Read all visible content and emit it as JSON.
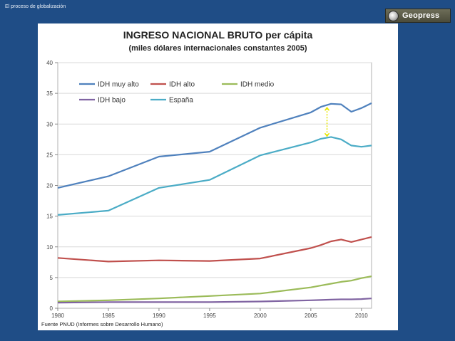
{
  "slide": {
    "title": "El proceso de globalización",
    "logo_text": "Geopress"
  },
  "chart_data": {
    "type": "line",
    "title": "INGRESO NACIONAL BRUTO per cápita",
    "subtitle": "(miles dólares internacionales constantes 2005)",
    "source": "Fuente PNUD (Informes sobre Desarrollo Humano)",
    "xlim": [
      1980,
      2011
    ],
    "ylim": [
      0,
      40
    ],
    "x_ticks": [
      1980,
      1985,
      1990,
      1995,
      2000,
      2005,
      2010
    ],
    "y_ticks": [
      0,
      5,
      10,
      15,
      20,
      25,
      30,
      35,
      40
    ],
    "grid": true,
    "legend_position": "top-left",
    "series": [
      {
        "name": "IDH muy alto",
        "color": "#4f81bd",
        "x": [
          1980,
          1985,
          1990,
          1995,
          2000,
          2005,
          2006,
          2007,
          2008,
          2009,
          2010,
          2011
        ],
        "values": [
          19.6,
          21.5,
          24.7,
          25.5,
          29.4,
          31.9,
          32.8,
          33.3,
          33.2,
          32.0,
          32.6,
          33.4
        ]
      },
      {
        "name": "IDH alto",
        "color": "#c0504d",
        "x": [
          1980,
          1985,
          1990,
          1995,
          2000,
          2005,
          2006,
          2007,
          2008,
          2009,
          2010,
          2011
        ],
        "values": [
          8.2,
          7.6,
          7.8,
          7.7,
          8.1,
          9.8,
          10.3,
          10.9,
          11.2,
          10.8,
          11.2,
          11.6
        ]
      },
      {
        "name": "IDH medio",
        "color": "#9bbb59",
        "x": [
          1980,
          1985,
          1990,
          1995,
          2000,
          2005,
          2006,
          2007,
          2008,
          2009,
          2010,
          2011
        ],
        "values": [
          1.1,
          1.3,
          1.6,
          2.0,
          2.4,
          3.4,
          3.7,
          4.0,
          4.3,
          4.5,
          4.9,
          5.2
        ]
      },
      {
        "name": "IDH bajo",
        "color": "#8064a2",
        "x": [
          1980,
          1985,
          1990,
          1995,
          2000,
          2005,
          2006,
          2007,
          2008,
          2009,
          2010,
          2011
        ],
        "values": [
          0.9,
          1.0,
          1.0,
          1.0,
          1.1,
          1.3,
          1.35,
          1.4,
          1.45,
          1.45,
          1.5,
          1.6
        ]
      },
      {
        "name": "España",
        "color": "#4bacc6",
        "x": [
          1980,
          1985,
          1990,
          1995,
          2000,
          2005,
          2006,
          2007,
          2008,
          2009,
          2010,
          2011
        ],
        "values": [
          15.2,
          15.9,
          19.6,
          20.9,
          24.9,
          27.0,
          27.6,
          27.9,
          27.5,
          26.5,
          26.3,
          26.5
        ]
      }
    ],
    "annotation": {
      "type": "gap-arrow",
      "color": "#e6e600",
      "x": 2006.6,
      "from": 32.9,
      "to": 27.8
    }
  }
}
